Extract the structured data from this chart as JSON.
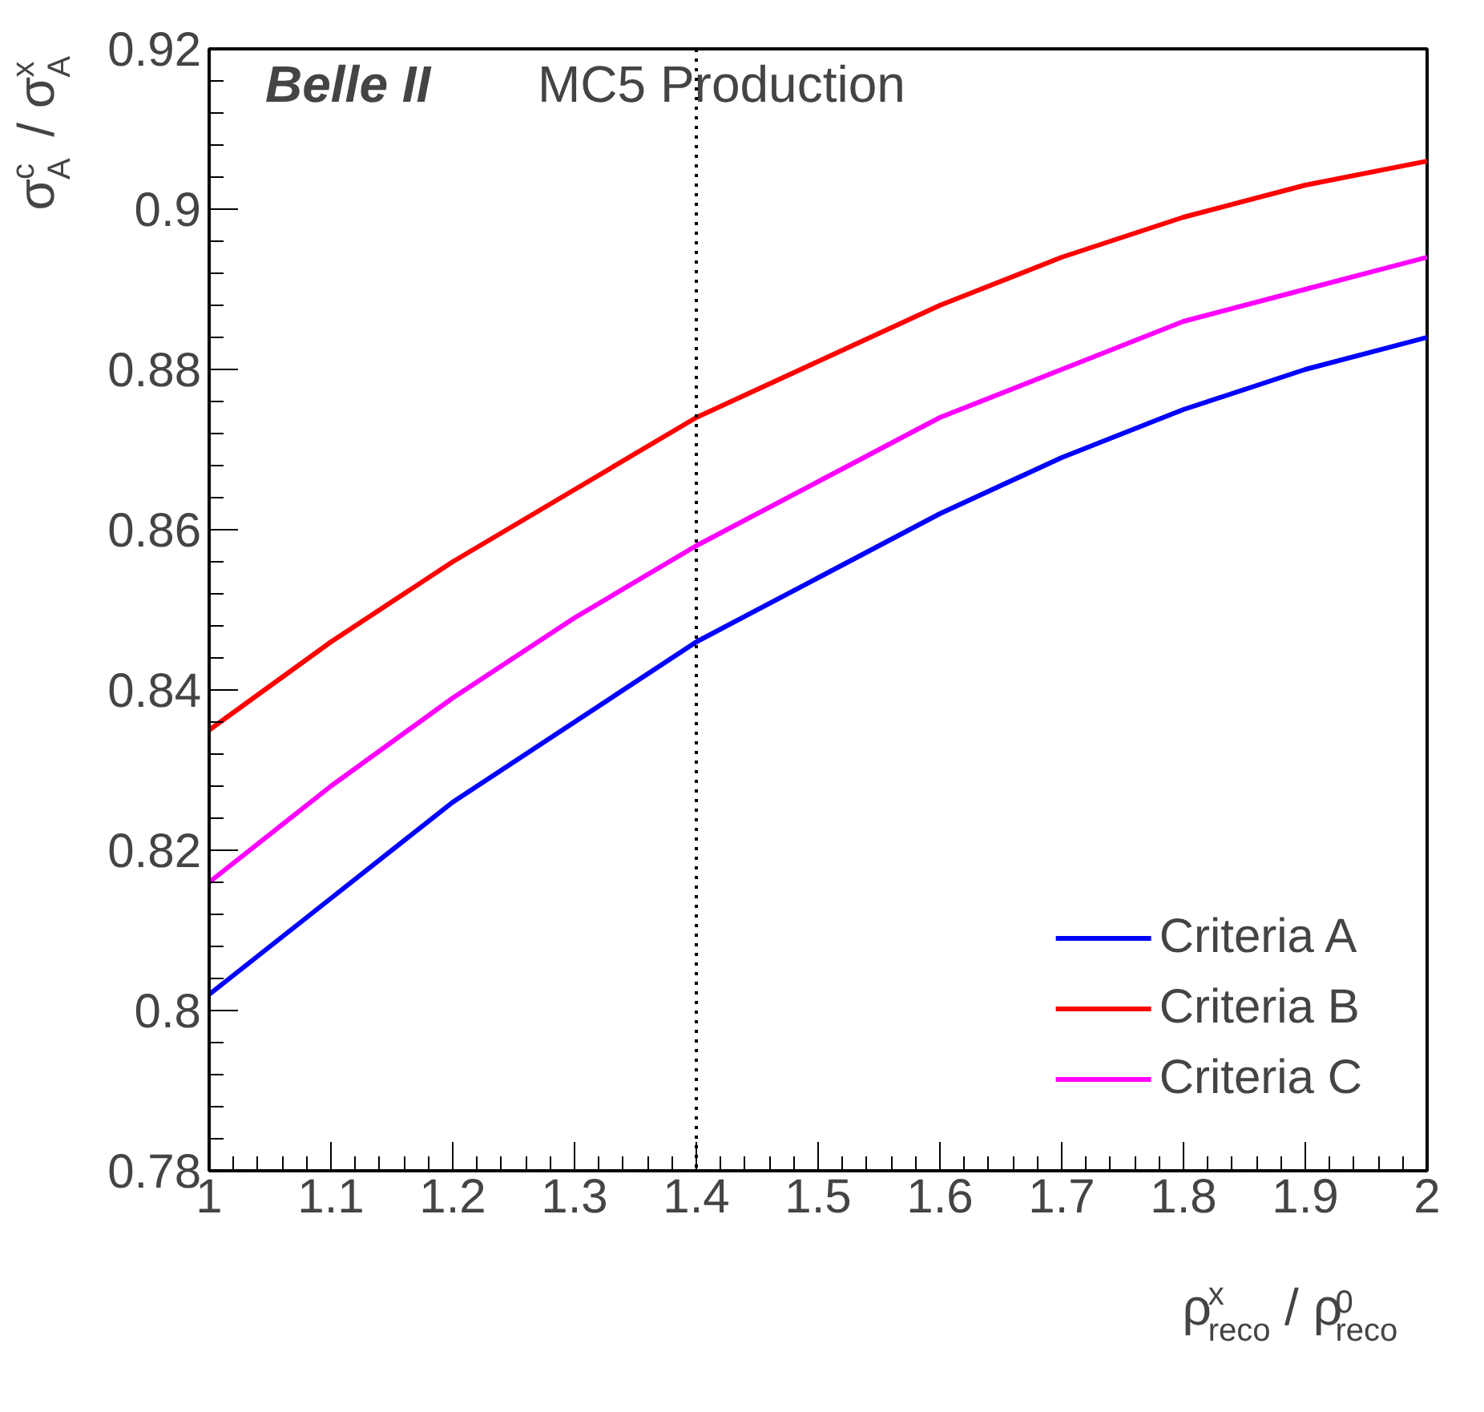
{
  "chart_data": {
    "type": "line",
    "xlabel": "ρ$^{x}$$_{reco}$ / ρ$^{0}$$_{reco}$",
    "ylabel": "σ$^{c}$$_{A}$ / σ$^{x}$$_{A}$",
    "annotations": [
      "Belle II",
      "MC5 Production"
    ],
    "x": [
      1,
      1.1,
      1.2,
      1.3,
      1.4,
      1.5,
      1.6,
      1.7,
      1.8,
      1.9,
      2
    ],
    "series": [
      {
        "name": "Criteria A",
        "color": "#0000ff",
        "values": [
          0.802,
          0.814,
          0.826,
          0.836,
          0.846,
          0.854,
          0.862,
          0.869,
          0.875,
          0.88,
          0.884
        ]
      },
      {
        "name": "Criteria B",
        "color": "#ff0000",
        "values": [
          0.835,
          0.846,
          0.856,
          0.865,
          0.874,
          0.881,
          0.888,
          0.894,
          0.899,
          0.903,
          0.906
        ]
      },
      {
        "name": "Criteria C",
        "color": "#ff00ff",
        "values": [
          0.816,
          0.828,
          0.839,
          0.849,
          0.858,
          0.866,
          0.874,
          0.88,
          0.886,
          0.89,
          0.894
        ]
      }
    ],
    "xlim": [
      1,
      2
    ],
    "xticks": [
      1,
      1.1,
      1.2,
      1.3,
      1.4,
      1.5,
      1.6,
      1.7,
      1.8,
      1.9,
      2
    ],
    "ylim": [
      0.78,
      0.92
    ],
    "yticks": [
      0.78,
      0.8,
      0.82,
      0.84,
      0.86,
      0.88,
      0.9,
      0.92
    ],
    "ref_lines": [
      {
        "axis": "x",
        "value": 1.4,
        "color": "#000000",
        "line_style": "dotted"
      }
    ],
    "grid": false,
    "legend": "bottom right",
    "marker": "none",
    "line_style": "solid"
  }
}
